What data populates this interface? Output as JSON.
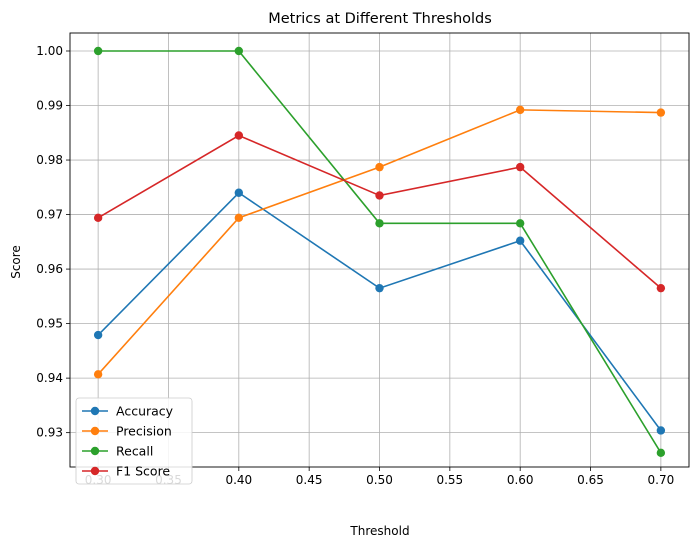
{
  "chart_data": {
    "type": "line",
    "title": "Metrics at Different Thresholds",
    "xlabel": "Threshold",
    "ylabel": "Score",
    "x": [
      0.3,
      0.4,
      0.5,
      0.6,
      0.7
    ],
    "xlim": [
      0.28,
      0.72
    ],
    "ylim": [
      0.9237,
      1.0033
    ],
    "xticks": [
      "0.30",
      "0.35",
      "0.40",
      "0.45",
      "0.50",
      "0.55",
      "0.60",
      "0.65",
      "0.70"
    ],
    "xtick_values": [
      0.3,
      0.35,
      0.4,
      0.45,
      0.5,
      0.55,
      0.6,
      0.65,
      0.7
    ],
    "yticks": [
      "0.93",
      "0.94",
      "0.95",
      "0.96",
      "0.97",
      "0.98",
      "0.99",
      "1.00"
    ],
    "ytick_values": [
      0.93,
      0.94,
      0.95,
      0.96,
      0.97,
      0.98,
      0.99,
      1.0
    ],
    "grid": true,
    "legend_position": "lower-left",
    "series": [
      {
        "name": "Accuracy",
        "color": "#1f77b4",
        "values": [
          0.9479,
          0.974,
          0.9565,
          0.9652,
          0.9304
        ]
      },
      {
        "name": "Precision",
        "color": "#ff7f0e",
        "values": [
          0.9407,
          0.9694,
          0.9787,
          0.9892,
          0.9887
        ]
      },
      {
        "name": "Recall",
        "color": "#2ca02c",
        "values": [
          1.0,
          1.0,
          0.9684,
          0.9684,
          0.9263
        ]
      },
      {
        "name": "F1 Score",
        "color": "#d62728",
        "values": [
          0.9694,
          0.9845,
          0.9735,
          0.9787,
          0.9565
        ]
      }
    ]
  }
}
